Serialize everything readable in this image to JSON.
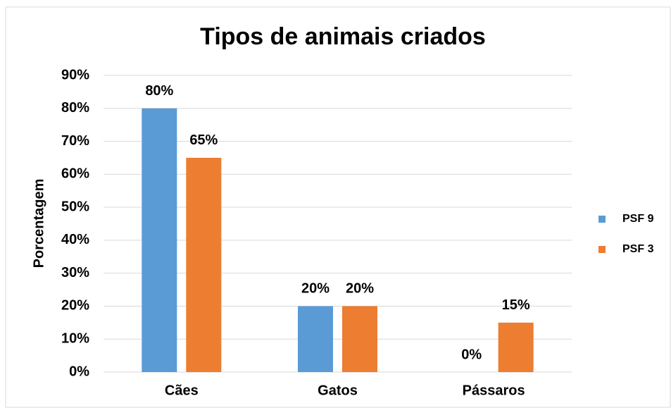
{
  "chart_data": {
    "type": "bar",
    "title": "Tipos de animais criados",
    "y_label": "Porcentagem",
    "categories": [
      "Cães",
      "Gatos",
      "Pássaros"
    ],
    "series": [
      {
        "name": "PSF 9",
        "color": "#5b9bd5",
        "values": [
          80,
          20,
          0
        ],
        "value_labels": [
          "80%",
          "20%",
          "0%"
        ]
      },
      {
        "name": "PSF 3",
        "color": "#ed7d31",
        "values": [
          65,
          20,
          15
        ],
        "value_labels": [
          "65%",
          "20%",
          "15%"
        ]
      }
    ],
    "ylim": [
      0,
      90
    ],
    "yticks": [
      {
        "value": 0,
        "label": "0%"
      },
      {
        "value": 10,
        "label": "10%"
      },
      {
        "value": 20,
        "label": "20%"
      },
      {
        "value": 30,
        "label": "30%"
      },
      {
        "value": 40,
        "label": "40%"
      },
      {
        "value": 50,
        "label": "50%"
      },
      {
        "value": 60,
        "label": "60%"
      },
      {
        "value": 70,
        "label": "70%"
      },
      {
        "value": 80,
        "label": "80%"
      },
      {
        "value": 90,
        "label": "90%"
      }
    ],
    "grid": true,
    "legend": "right"
  }
}
